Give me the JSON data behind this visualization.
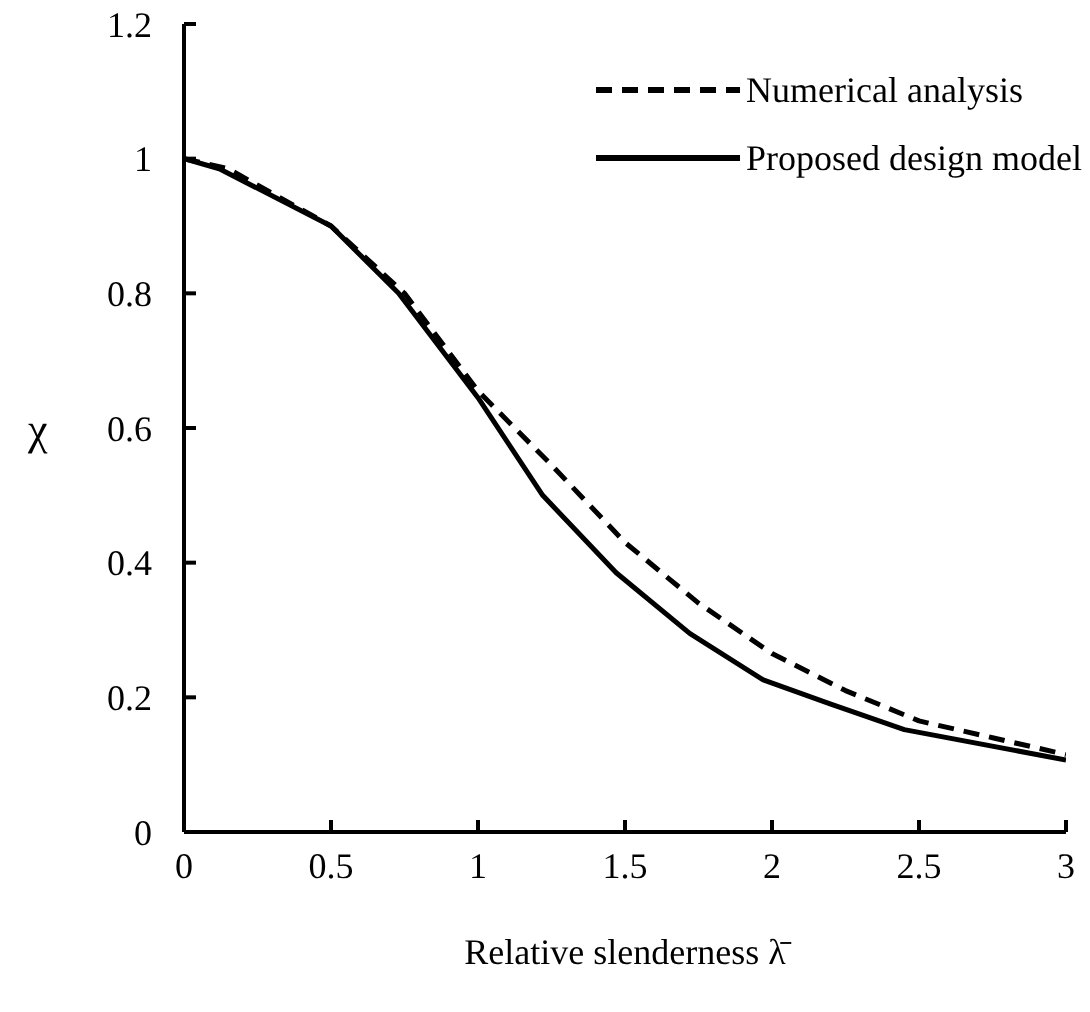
{
  "chart_data": {
    "type": "line",
    "xlabel": "Relative slenderness λ̄",
    "ylabel": "χ",
    "xlim": [
      0,
      3
    ],
    "xticks": [
      0,
      0.5,
      1,
      1.5,
      2,
      2.5,
      3
    ],
    "ylim": [
      0,
      1.2
    ],
    "yticks": [
      0,
      0.2,
      0.4,
      0.6,
      0.8,
      1,
      1.2
    ],
    "grid": false,
    "legend": "top right",
    "marker": "none",
    "series": [
      {
        "name": "Numerical analysis",
        "color": "#000000",
        "line_style": "dashed",
        "x": [
          0,
          0.15,
          0.5,
          0.75,
          1,
          1.25,
          1.5,
          1.75,
          2,
          2.25,
          2.5,
          2.75,
          3
        ],
        "values": [
          1,
          0.985,
          0.9,
          0.8,
          0.655,
          0.545,
          0.43,
          0.34,
          0.265,
          0.21,
          0.165,
          0.14,
          0.115
        ]
      },
      {
        "name": "Proposed design model",
        "color": "#000000",
        "line_style": "solid",
        "x": [
          0,
          0.12,
          0.5,
          0.73,
          1,
          1.22,
          1.47,
          1.72,
          1.97,
          2.2,
          2.45,
          3
        ],
        "values": [
          1,
          0.985,
          0.9,
          0.8,
          0.645,
          0.5,
          0.385,
          0.295,
          0.226,
          0.19,
          0.152,
          0.107
        ]
      }
    ]
  }
}
